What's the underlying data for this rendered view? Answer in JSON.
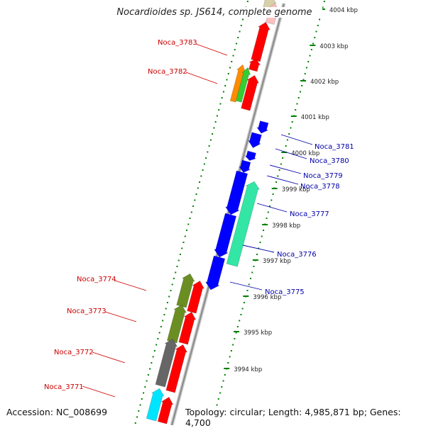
{
  "title": "Nocardioides sp. JS614, complete genome",
  "accession": "Accession: NC_008699",
  "topology": "Topology: circular; Length: 4,985,871 bp; Genes: 4,700",
  "colors": {
    "forward": "#ff0000",
    "reverse": "#0000ff",
    "backbone": "#999999",
    "tick_dots": "#008000",
    "label_forward": "#cc0000",
    "label_reverse": "#0000aa"
  },
  "scale_labels": [
    "4004 kbp",
    "4003 kbp",
    "4002 kbp",
    "4001 kbp",
    "4000 kbp",
    "3999 kbp",
    "3998 kbp",
    "3997 kbp",
    "3996 kbp",
    "3995 kbp",
    "3994 kbp"
  ],
  "gene_labels_left": [
    "Noca_3783",
    "Noca_3782",
    "Noca_3774",
    "Noca_3773",
    "Noca_3772",
    "Noca_3771"
  ],
  "gene_labels_right": [
    "Noca_3781",
    "Noca_3780",
    "Noca_3779",
    "Noca_3778",
    "Noca_3777",
    "Noca_3776",
    "Noca_3775"
  ]
}
